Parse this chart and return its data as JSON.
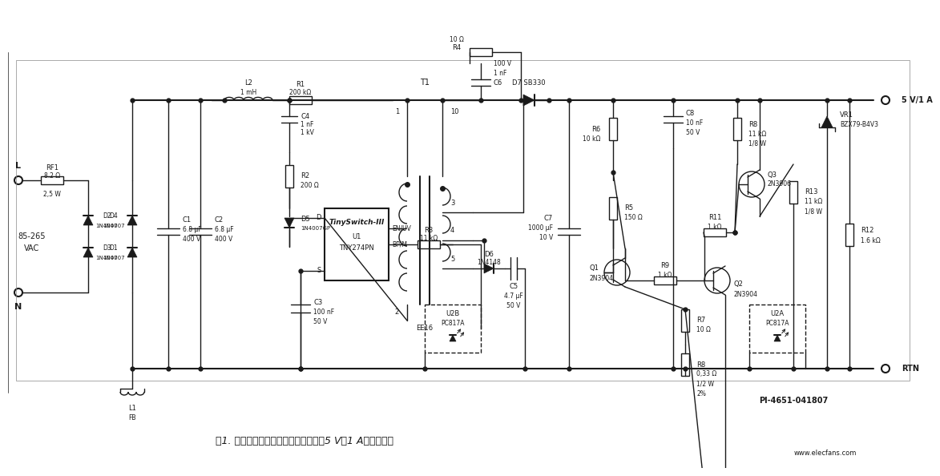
{
  "bg_color": "#ffffff",
  "fig_width": 11.4,
  "fig_height": 5.74,
  "title_text": "图1. 用于便携式音频播放器的充电器（5 V，1 A）电路设计",
  "ref_text": "PI-4651-041807",
  "watermark": "www.elecfans.com",
  "output_label": "5 V/1 A",
  "rtn_label": "RTN"
}
